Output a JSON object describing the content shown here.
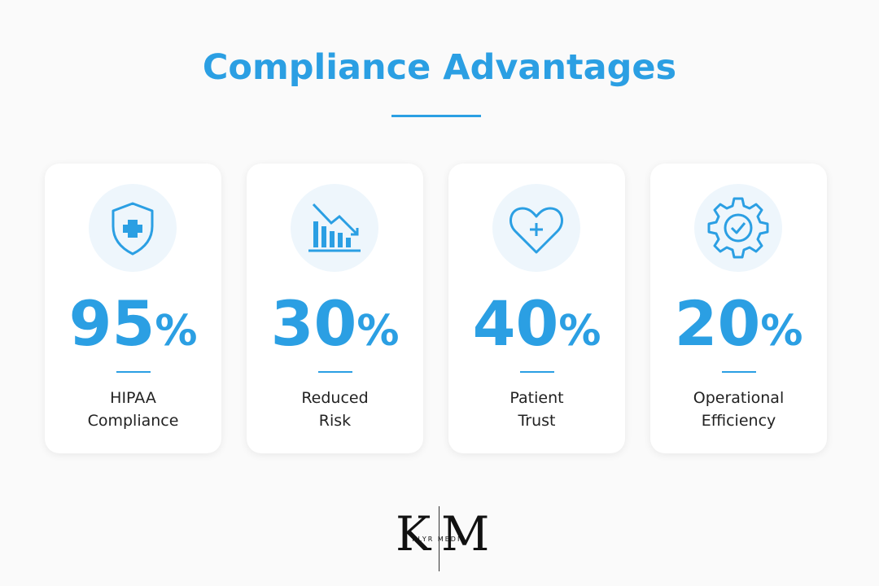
{
  "header": {
    "title": "Compliance Advantages"
  },
  "cards": [
    {
      "value": "95",
      "unit": "%",
      "label": [
        "HIPAA",
        "Compliance"
      ]
    },
    {
      "value": "30",
      "unit": "%",
      "label": [
        "Reduced",
        "Risk"
      ]
    },
    {
      "value": "40",
      "unit": "%",
      "label": [
        "Patient",
        "Trust"
      ]
    },
    {
      "value": "20",
      "unit": "%",
      "label": [
        "Operational",
        "Efficiency"
      ]
    }
  ],
  "logo": {
    "left": "K",
    "right": "M",
    "name": "KLYR MEDIA"
  }
}
